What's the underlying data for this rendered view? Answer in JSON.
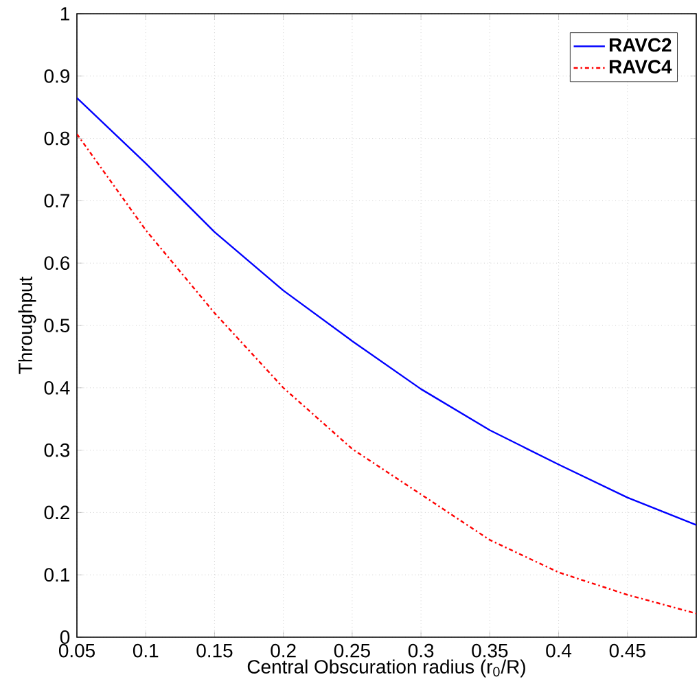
{
  "chart_data": {
    "type": "line",
    "xlabel": "Central Obscuration radius (r$_{0}$/R)",
    "ylabel": "Throughput",
    "x": [
      0.05,
      0.1,
      0.15,
      0.2,
      0.25,
      0.3,
      0.35,
      0.4,
      0.45,
      0.5
    ],
    "series": [
      {
        "name": "RAVC2",
        "color": "#0000ff",
        "line_style": "solid",
        "values": [
          0.865,
          0.76,
          0.65,
          0.556,
          0.475,
          0.398,
          0.332,
          0.277,
          0.224,
          0.18
        ]
      },
      {
        "name": "RAVC4",
        "color": "#ff0000",
        "line_style": "dashdot",
        "values": [
          0.807,
          0.653,
          0.52,
          0.4,
          0.302,
          0.229,
          0.156,
          0.104,
          0.068,
          0.038
        ]
      }
    ],
    "xlim": [
      0.05,
      0.5
    ],
    "ylim": [
      0,
      1
    ],
    "xticks": [
      0.05,
      0.1,
      0.15,
      0.2,
      0.25,
      0.3,
      0.35,
      0.4,
      0.45
    ],
    "yticks": [
      0,
      0.1,
      0.2,
      0.3,
      0.4,
      0.5,
      0.6,
      0.7,
      0.8,
      0.9,
      1
    ],
    "grid": true,
    "legend": "top right",
    "marker": "none"
  }
}
